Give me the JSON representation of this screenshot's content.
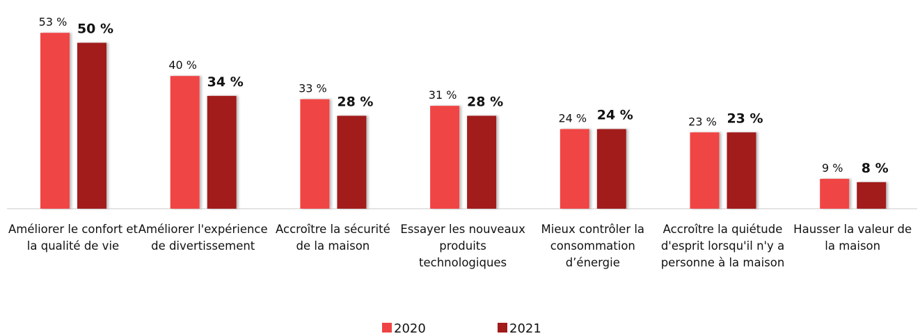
{
  "chart_data": {
    "type": "bar",
    "categories": [
      "Améliorer le confort et la qualité de vie",
      "Améliorer l'expérience de divertissement",
      "Accroître la sécurité de la maison",
      "Essayer les nouveaux produits technologiques",
      "Mieux contrôler la consommation d’énergie",
      "Accroître la quiétude d'esprit lorsqu'il n'y a personne à la maison",
      "Hausser la valeur de la maison"
    ],
    "series": [
      {
        "name": "2020",
        "color": "#f04444",
        "values": [
          53,
          40,
          33,
          31,
          24,
          23,
          9
        ],
        "value_labels": [
          "53 %",
          "40 %",
          "33 %",
          "31 %",
          "24 %",
          "23 %",
          "9 %"
        ]
      },
      {
        "name": "2021",
        "color": "#a21b1b",
        "values": [
          50,
          34,
          28,
          28,
          24,
          23,
          8
        ],
        "value_labels": [
          "50 %",
          "34 %",
          "28 %",
          "28 %",
          "24 %",
          "23 %",
          "8 %"
        ]
      }
    ],
    "legend": "bottom"
  }
}
